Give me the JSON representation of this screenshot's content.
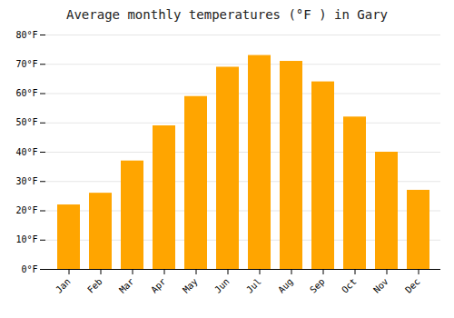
{
  "chart_data": {
    "type": "bar",
    "title": "Average monthly temperatures (°F ) in Gary",
    "categories": [
      "Jan",
      "Feb",
      "Mar",
      "Apr",
      "May",
      "Jun",
      "Jul",
      "Aug",
      "Sep",
      "Oct",
      "Nov",
      "Dec"
    ],
    "values": [
      22,
      26,
      37,
      49,
      59,
      69,
      73,
      71,
      64,
      52,
      40,
      27
    ],
    "color": "#FFA500",
    "ylim": [
      0,
      80
    ],
    "yticks": [
      {
        "value": 0,
        "label": "0°F"
      },
      {
        "value": 10,
        "label": "10°F"
      },
      {
        "value": 20,
        "label": "20°F"
      },
      {
        "value": 30,
        "label": "30°F"
      },
      {
        "value": 40,
        "label": "40°F"
      },
      {
        "value": 50,
        "label": "50°F"
      },
      {
        "value": 60,
        "label": "60°F"
      },
      {
        "value": 70,
        "label": "70°F"
      },
      {
        "value": 80,
        "label": "80°F"
      }
    ],
    "grid": true
  }
}
